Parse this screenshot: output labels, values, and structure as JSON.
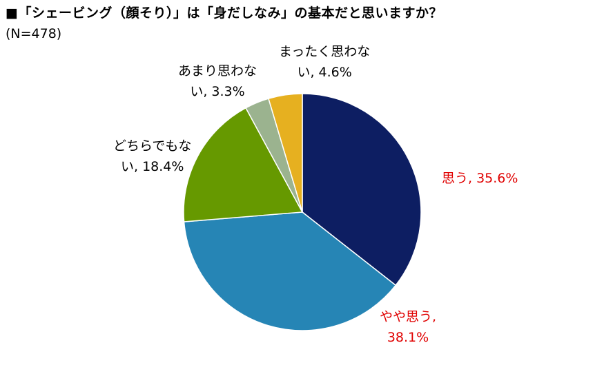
{
  "title": "■「シェービング（顔そり）」は「身だしなみ」の基本だと思いますか？",
  "subtitle": "(N=478)",
  "chart_data": {
    "type": "pie",
    "title": "■「シェービング（顔そり）」は「身だしなみ」の基本だと思いますか？",
    "subtitle": "(N=478)",
    "start": "12 o'clock",
    "direction": "clockwise",
    "slices": [
      {
        "key": "s1",
        "label": "思う",
        "value": 35.6,
        "color": "#0d1e62",
        "label_color": "#e00000",
        "display_lines": [
          "思う, 35.6%"
        ]
      },
      {
        "key": "s2",
        "label": "やや思う",
        "value": 38.1,
        "color": "#2685b5",
        "label_color": "#e00000",
        "display_lines": [
          "やや思う,",
          "38.1%"
        ]
      },
      {
        "key": "s3",
        "label": "どちらでもない",
        "value": 18.4,
        "color": "#669900",
        "label_color": "#000000",
        "display_lines": [
          "どちらでもな",
          "い, 18.4%"
        ]
      },
      {
        "key": "s4",
        "label": "あまり思わない",
        "value": 3.3,
        "color": "#9bb38f",
        "label_color": "#000000",
        "display_lines": [
          "あまり思わな",
          "い, 3.3%"
        ]
      },
      {
        "key": "s5",
        "label": "まったく思わない",
        "value": 4.6,
        "color": "#e6b020",
        "label_color": "#000000",
        "display_lines": [
          "まったく思わな",
          "い, 4.6%"
        ]
      }
    ]
  }
}
